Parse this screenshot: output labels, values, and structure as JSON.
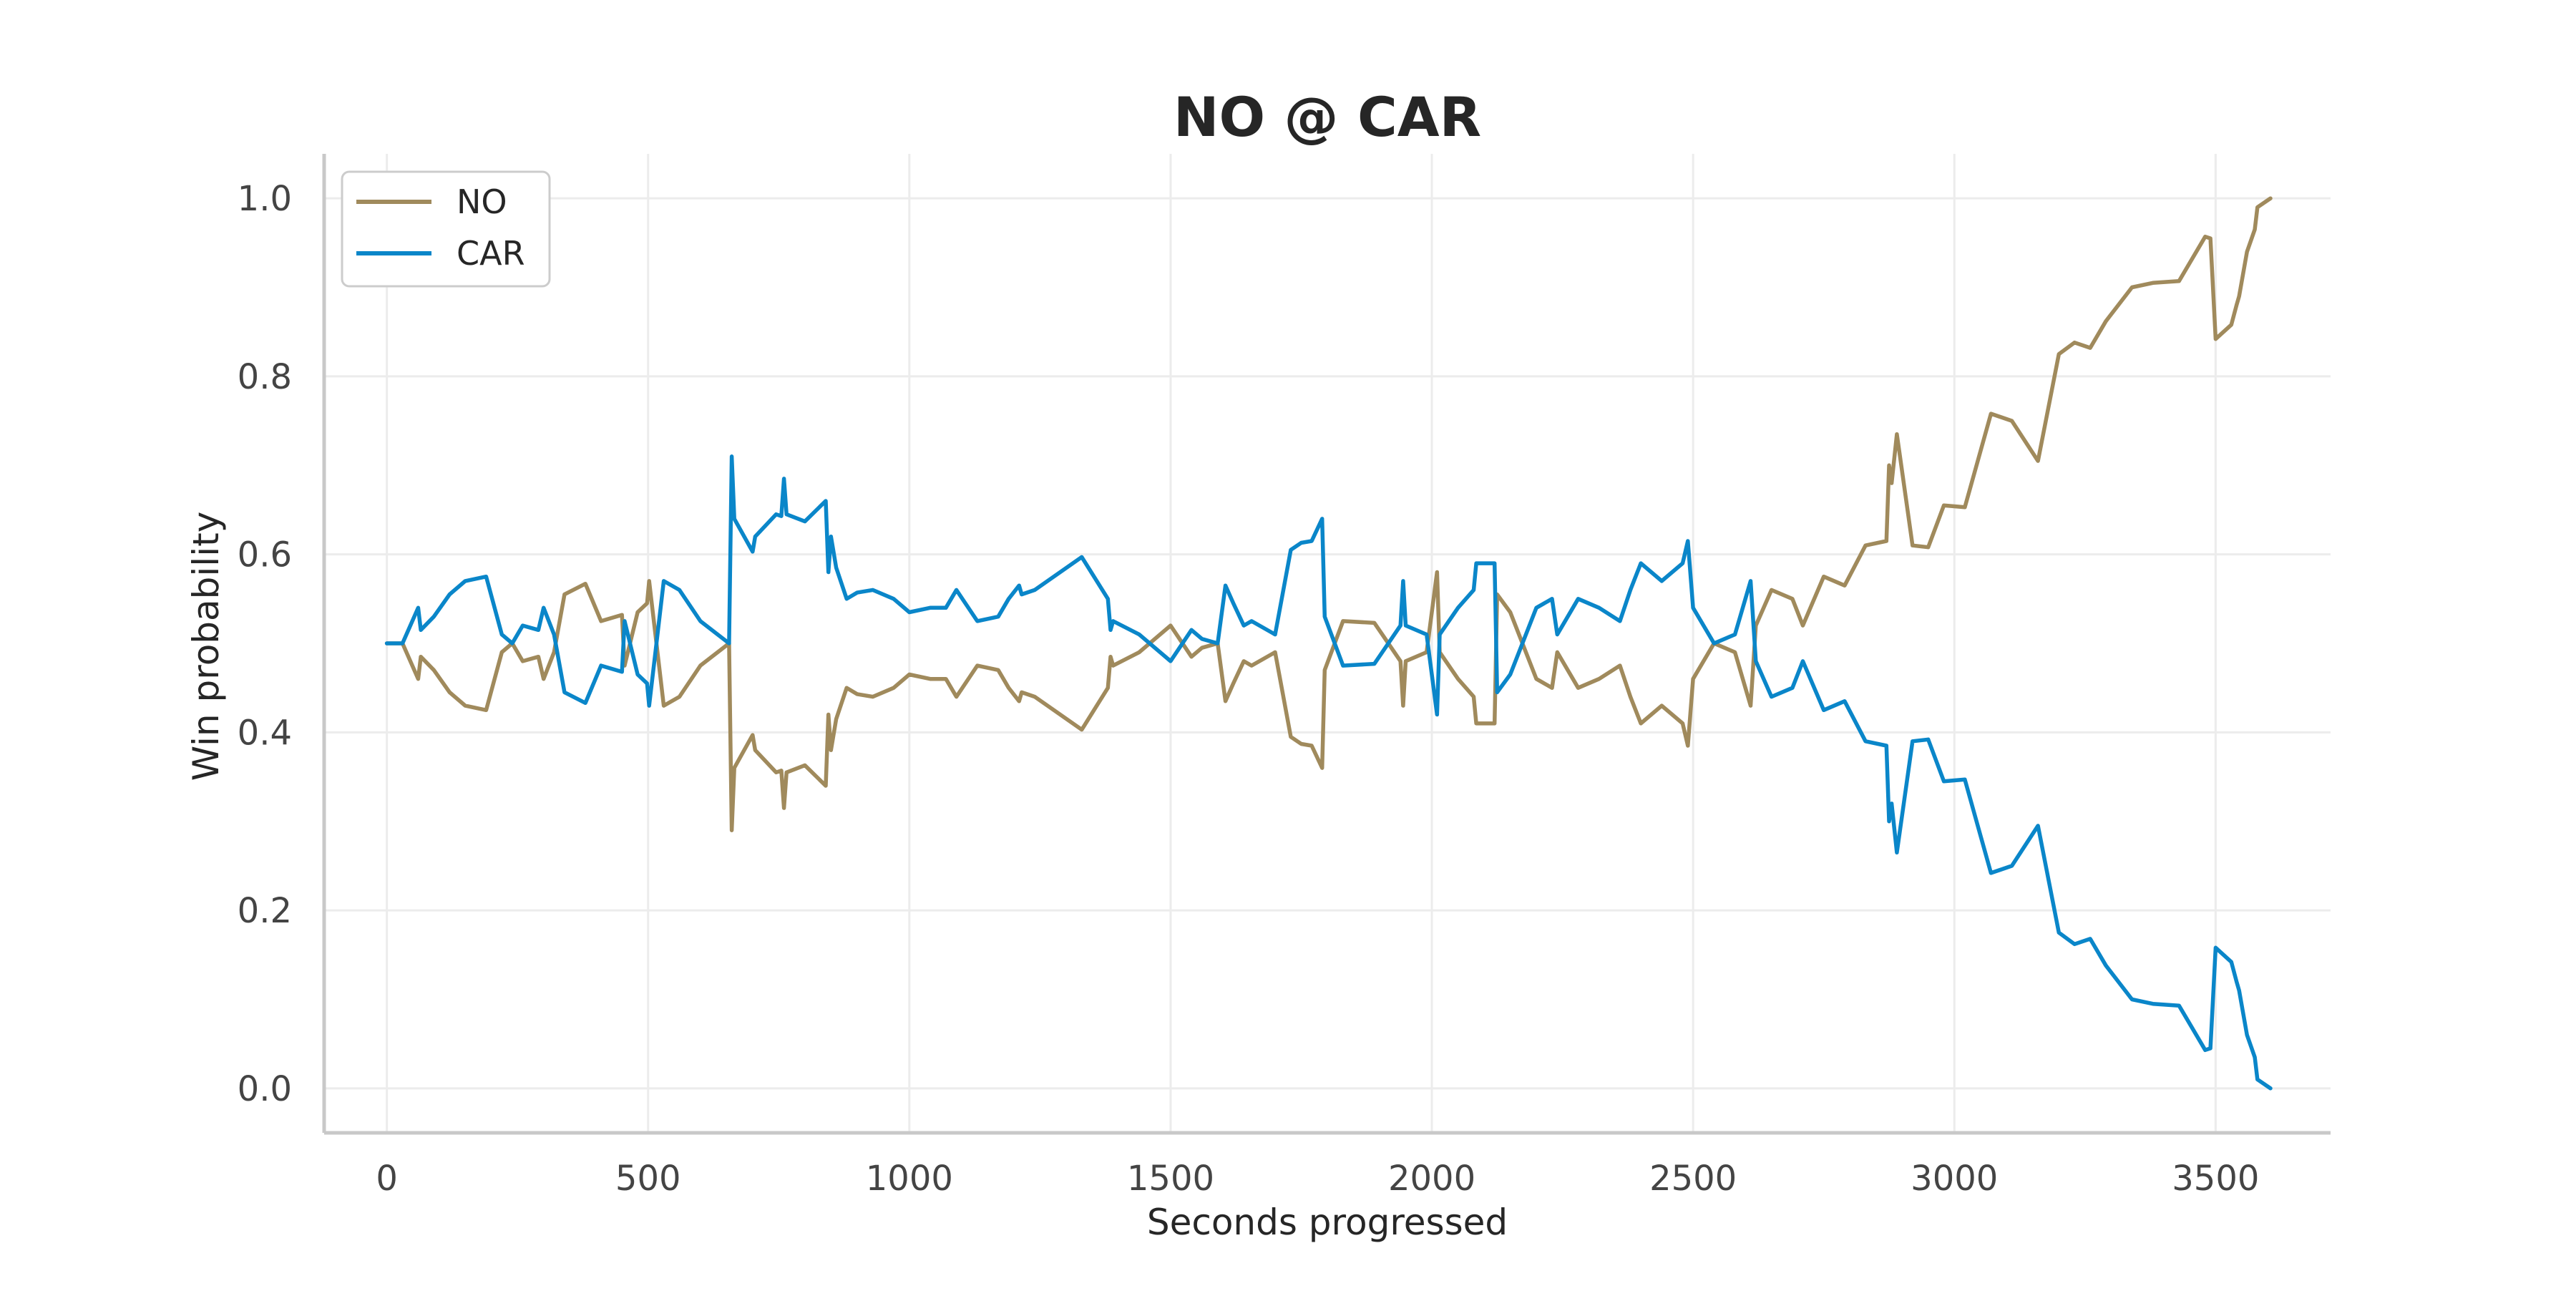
{
  "chart_data": {
    "type": "line",
    "title": "NO @ CAR",
    "xlabel": "Seconds progressed",
    "ylabel": "Win probability",
    "xlim": [
      -120,
      3720
    ],
    "ylim": [
      -0.05,
      1.05
    ],
    "xticks": [
      0,
      500,
      1000,
      1500,
      2000,
      2500,
      3000,
      3500
    ],
    "xtick_labels": [
      "0",
      "500",
      "1000",
      "1500",
      "2000",
      "2500",
      "3000",
      "3500"
    ],
    "yticks": [
      0.0,
      0.2,
      0.4,
      0.6,
      0.8,
      1.0
    ],
    "ytick_labels": [
      "0.0",
      "0.2",
      "0.4",
      "0.6",
      "0.8",
      "1.0"
    ],
    "grid": true,
    "legend": "top-left",
    "series": [
      {
        "name": "NO",
        "color": "#a08a5c",
        "points": [
          [
            0,
            0.5
          ],
          [
            30,
            0.5
          ],
          [
            60,
            0.46
          ],
          [
            65,
            0.485
          ],
          [
            90,
            0.47
          ],
          [
            120,
            0.445
          ],
          [
            150,
            0.43
          ],
          [
            190,
            0.425
          ],
          [
            220,
            0.49
          ],
          [
            240,
            0.5
          ],
          [
            260,
            0.48
          ],
          [
            290,
            0.485
          ],
          [
            300,
            0.46
          ],
          [
            320,
            0.49
          ],
          [
            340,
            0.555
          ],
          [
            380,
            0.567
          ],
          [
            410,
            0.525
          ],
          [
            450,
            0.532
          ],
          [
            455,
            0.475
          ],
          [
            480,
            0.535
          ],
          [
            498,
            0.545
          ],
          [
            502,
            0.57
          ],
          [
            530,
            0.43
          ],
          [
            560,
            0.44
          ],
          [
            600,
            0.475
          ],
          [
            655,
            0.5
          ],
          [
            660,
            0.29
          ],
          [
            665,
            0.36
          ],
          [
            700,
            0.397
          ],
          [
            705,
            0.38
          ],
          [
            745,
            0.355
          ],
          [
            755,
            0.357
          ],
          [
            760,
            0.315
          ],
          [
            765,
            0.355
          ],
          [
            800,
            0.363
          ],
          [
            840,
            0.34
          ],
          [
            845,
            0.42
          ],
          [
            850,
            0.38
          ],
          [
            860,
            0.415
          ],
          [
            880,
            0.45
          ],
          [
            900,
            0.443
          ],
          [
            930,
            0.44
          ],
          [
            970,
            0.45
          ],
          [
            1000,
            0.465
          ],
          [
            1040,
            0.46
          ],
          [
            1070,
            0.46
          ],
          [
            1090,
            0.44
          ],
          [
            1130,
            0.475
          ],
          [
            1170,
            0.47
          ],
          [
            1190,
            0.45
          ],
          [
            1210,
            0.435
          ],
          [
            1215,
            0.445
          ],
          [
            1240,
            0.44
          ],
          [
            1330,
            0.403
          ],
          [
            1380,
            0.45
          ],
          [
            1385,
            0.485
          ],
          [
            1390,
            0.475
          ],
          [
            1440,
            0.49
          ],
          [
            1500,
            0.52
          ],
          [
            1540,
            0.485
          ],
          [
            1560,
            0.495
          ],
          [
            1590,
            0.5
          ],
          [
            1605,
            0.435
          ],
          [
            1620,
            0.455
          ],
          [
            1640,
            0.48
          ],
          [
            1655,
            0.475
          ],
          [
            1700,
            0.49
          ],
          [
            1730,
            0.395
          ],
          [
            1750,
            0.387
          ],
          [
            1770,
            0.385
          ],
          [
            1790,
            0.36
          ],
          [
            1795,
            0.47
          ],
          [
            1830,
            0.525
          ],
          [
            1890,
            0.523
          ],
          [
            1940,
            0.48
          ],
          [
            1945,
            0.43
          ],
          [
            1950,
            0.48
          ],
          [
            1990,
            0.49
          ],
          [
            2010,
            0.58
          ],
          [
            2015,
            0.49
          ],
          [
            2050,
            0.46
          ],
          [
            2080,
            0.44
          ],
          [
            2085,
            0.41
          ],
          [
            2120,
            0.41
          ],
          [
            2125,
            0.555
          ],
          [
            2150,
            0.535
          ],
          [
            2200,
            0.46
          ],
          [
            2230,
            0.45
          ],
          [
            2240,
            0.49
          ],
          [
            2280,
            0.45
          ],
          [
            2320,
            0.46
          ],
          [
            2360,
            0.475
          ],
          [
            2380,
            0.44
          ],
          [
            2400,
            0.41
          ],
          [
            2440,
            0.43
          ],
          [
            2480,
            0.41
          ],
          [
            2490,
            0.385
          ],
          [
            2500,
            0.46
          ],
          [
            2540,
            0.5
          ],
          [
            2580,
            0.49
          ],
          [
            2600,
            0.45
          ],
          [
            2610,
            0.43
          ],
          [
            2620,
            0.52
          ],
          [
            2650,
            0.56
          ],
          [
            2690,
            0.55
          ],
          [
            2710,
            0.52
          ],
          [
            2750,
            0.575
          ],
          [
            2790,
            0.565
          ],
          [
            2830,
            0.61
          ],
          [
            2870,
            0.615
          ],
          [
            2875,
            0.7
          ],
          [
            2880,
            0.68
          ],
          [
            2890,
            0.735
          ],
          [
            2920,
            0.61
          ],
          [
            2950,
            0.608
          ],
          [
            2980,
            0.655
          ],
          [
            3020,
            0.653
          ],
          [
            3070,
            0.758
          ],
          [
            3110,
            0.75
          ],
          [
            3160,
            0.705
          ],
          [
            3200,
            0.825
          ],
          [
            3230,
            0.838
          ],
          [
            3260,
            0.832
          ],
          [
            3290,
            0.862
          ],
          [
            3340,
            0.9
          ],
          [
            3380,
            0.905
          ],
          [
            3430,
            0.907
          ],
          [
            3480,
            0.957
          ],
          [
            3490,
            0.955
          ],
          [
            3500,
            0.842
          ],
          [
            3530,
            0.858
          ],
          [
            3540,
            0.88
          ],
          [
            3545,
            0.89
          ],
          [
            3560,
            0.94
          ],
          [
            3575,
            0.965
          ],
          [
            3580,
            0.99
          ],
          [
            3605,
            1.0
          ]
        ]
      },
      {
        "name": "CAR",
        "color": "#0a86c9",
        "points": [
          [
            0,
            0.5
          ],
          [
            30,
            0.5
          ],
          [
            60,
            0.54
          ],
          [
            65,
            0.515
          ],
          [
            90,
            0.53
          ],
          [
            120,
            0.555
          ],
          [
            150,
            0.57
          ],
          [
            190,
            0.575
          ],
          [
            220,
            0.51
          ],
          [
            240,
            0.5
          ],
          [
            260,
            0.52
          ],
          [
            290,
            0.515
          ],
          [
            300,
            0.54
          ],
          [
            320,
            0.51
          ],
          [
            340,
            0.445
          ],
          [
            380,
            0.433
          ],
          [
            410,
            0.475
          ],
          [
            450,
            0.468
          ],
          [
            455,
            0.525
          ],
          [
            480,
            0.465
          ],
          [
            498,
            0.455
          ],
          [
            502,
            0.43
          ],
          [
            530,
            0.57
          ],
          [
            560,
            0.56
          ],
          [
            600,
            0.525
          ],
          [
            655,
            0.5
          ],
          [
            660,
            0.71
          ],
          [
            665,
            0.64
          ],
          [
            700,
            0.603
          ],
          [
            705,
            0.62
          ],
          [
            745,
            0.645
          ],
          [
            755,
            0.643
          ],
          [
            760,
            0.685
          ],
          [
            765,
            0.645
          ],
          [
            800,
            0.637
          ],
          [
            840,
            0.66
          ],
          [
            845,
            0.58
          ],
          [
            850,
            0.62
          ],
          [
            860,
            0.585
          ],
          [
            880,
            0.55
          ],
          [
            900,
            0.557
          ],
          [
            930,
            0.56
          ],
          [
            970,
            0.55
          ],
          [
            1000,
            0.535
          ],
          [
            1040,
            0.54
          ],
          [
            1070,
            0.54
          ],
          [
            1090,
            0.56
          ],
          [
            1130,
            0.525
          ],
          [
            1170,
            0.53
          ],
          [
            1190,
            0.55
          ],
          [
            1210,
            0.565
          ],
          [
            1215,
            0.555
          ],
          [
            1240,
            0.56
          ],
          [
            1330,
            0.597
          ],
          [
            1380,
            0.55
          ],
          [
            1385,
            0.515
          ],
          [
            1390,
            0.525
          ],
          [
            1440,
            0.51
          ],
          [
            1500,
            0.48
          ],
          [
            1540,
            0.515
          ],
          [
            1560,
            0.505
          ],
          [
            1590,
            0.5
          ],
          [
            1605,
            0.565
          ],
          [
            1620,
            0.545
          ],
          [
            1640,
            0.52
          ],
          [
            1655,
            0.525
          ],
          [
            1700,
            0.51
          ],
          [
            1730,
            0.605
          ],
          [
            1750,
            0.613
          ],
          [
            1770,
            0.615
          ],
          [
            1790,
            0.64
          ],
          [
            1795,
            0.53
          ],
          [
            1830,
            0.475
          ],
          [
            1890,
            0.477
          ],
          [
            1940,
            0.52
          ],
          [
            1945,
            0.57
          ],
          [
            1950,
            0.52
          ],
          [
            1990,
            0.51
          ],
          [
            2010,
            0.42
          ],
          [
            2015,
            0.51
          ],
          [
            2050,
            0.54
          ],
          [
            2080,
            0.56
          ],
          [
            2085,
            0.59
          ],
          [
            2120,
            0.59
          ],
          [
            2125,
            0.445
          ],
          [
            2150,
            0.465
          ],
          [
            2200,
            0.54
          ],
          [
            2230,
            0.55
          ],
          [
            2240,
            0.51
          ],
          [
            2280,
            0.55
          ],
          [
            2320,
            0.54
          ],
          [
            2360,
            0.525
          ],
          [
            2380,
            0.56
          ],
          [
            2400,
            0.59
          ],
          [
            2440,
            0.57
          ],
          [
            2480,
            0.59
          ],
          [
            2490,
            0.615
          ],
          [
            2500,
            0.54
          ],
          [
            2540,
            0.5
          ],
          [
            2580,
            0.51
          ],
          [
            2600,
            0.55
          ],
          [
            2610,
            0.57
          ],
          [
            2620,
            0.48
          ],
          [
            2650,
            0.44
          ],
          [
            2690,
            0.45
          ],
          [
            2710,
            0.48
          ],
          [
            2750,
            0.425
          ],
          [
            2790,
            0.435
          ],
          [
            2830,
            0.39
          ],
          [
            2870,
            0.385
          ],
          [
            2875,
            0.3
          ],
          [
            2880,
            0.32
          ],
          [
            2890,
            0.265
          ],
          [
            2920,
            0.39
          ],
          [
            2950,
            0.392
          ],
          [
            2980,
            0.345
          ],
          [
            3020,
            0.347
          ],
          [
            3070,
            0.242
          ],
          [
            3110,
            0.25
          ],
          [
            3160,
            0.295
          ],
          [
            3200,
            0.175
          ],
          [
            3230,
            0.162
          ],
          [
            3260,
            0.168
          ],
          [
            3290,
            0.138
          ],
          [
            3340,
            0.1
          ],
          [
            3380,
            0.095
          ],
          [
            3430,
            0.093
          ],
          [
            3480,
            0.043
          ],
          [
            3490,
            0.045
          ],
          [
            3500,
            0.158
          ],
          [
            3530,
            0.142
          ],
          [
            3540,
            0.12
          ],
          [
            3545,
            0.11
          ],
          [
            3560,
            0.06
          ],
          [
            3575,
            0.035
          ],
          [
            3580,
            0.01
          ],
          [
            3605,
            0.0
          ]
        ]
      }
    ]
  }
}
